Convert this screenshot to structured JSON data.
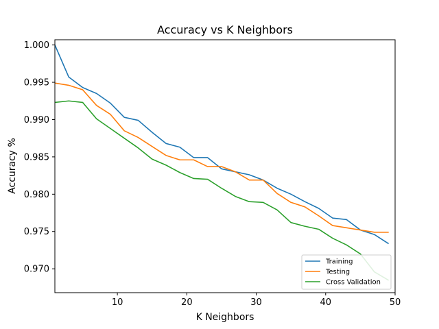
{
  "chart_data": {
    "type": "line",
    "title": "Accuracy vs K Neighbors",
    "xlabel": "K Neighbors",
    "ylabel": "Accuracy %",
    "xlim": [
      1,
      50
    ],
    "ylim": [
      0.9668,
      1.0007
    ],
    "xticks": [
      10,
      20,
      30,
      40,
      50
    ],
    "yticks": [
      0.97,
      0.975,
      0.98,
      0.985,
      0.99,
      0.995,
      1.0
    ],
    "ytick_labels": [
      "0.970",
      "0.975",
      "0.980",
      "0.985",
      "0.990",
      "0.995",
      "1.000"
    ],
    "grid": false,
    "legend_position": "bottom-right",
    "x": [
      1,
      3,
      5,
      7,
      9,
      11,
      13,
      15,
      17,
      19,
      21,
      23,
      25,
      27,
      29,
      31,
      33,
      35,
      37,
      39,
      41,
      43,
      45,
      47,
      49
    ],
    "series": [
      {
        "name": "Training",
        "color": "#1f77b4",
        "values": [
          1.0,
          0.9957,
          0.9943,
          0.9935,
          0.9922,
          0.9903,
          0.9899,
          0.9883,
          0.9868,
          0.9863,
          0.9849,
          0.9849,
          0.9834,
          0.983,
          0.9826,
          0.9819,
          0.9808,
          0.98,
          0.979,
          0.9781,
          0.9768,
          0.9766,
          0.9752,
          0.9746,
          0.9734
        ]
      },
      {
        "name": "Testing",
        "color": "#ff7f0e",
        "values": [
          0.9949,
          0.9946,
          0.994,
          0.9919,
          0.9907,
          0.9885,
          0.9876,
          0.9864,
          0.9852,
          0.9846,
          0.9846,
          0.9837,
          0.9837,
          0.983,
          0.9819,
          0.9819,
          0.9801,
          0.9789,
          0.9783,
          0.9771,
          0.9758,
          0.9755,
          0.9752,
          0.9749,
          0.9749
        ]
      },
      {
        "name": "Cross Validation",
        "color": "#2ca02c",
        "values": [
          0.9923,
          0.9925,
          0.9923,
          0.9901,
          0.9888,
          0.9875,
          0.9862,
          0.9847,
          0.9839,
          0.9829,
          0.9821,
          0.982,
          0.9808,
          0.9797,
          0.979,
          0.9789,
          0.9779,
          0.9762,
          0.9757,
          0.9753,
          0.9741,
          0.9732,
          0.972,
          0.9696,
          0.9685
        ]
      }
    ]
  }
}
